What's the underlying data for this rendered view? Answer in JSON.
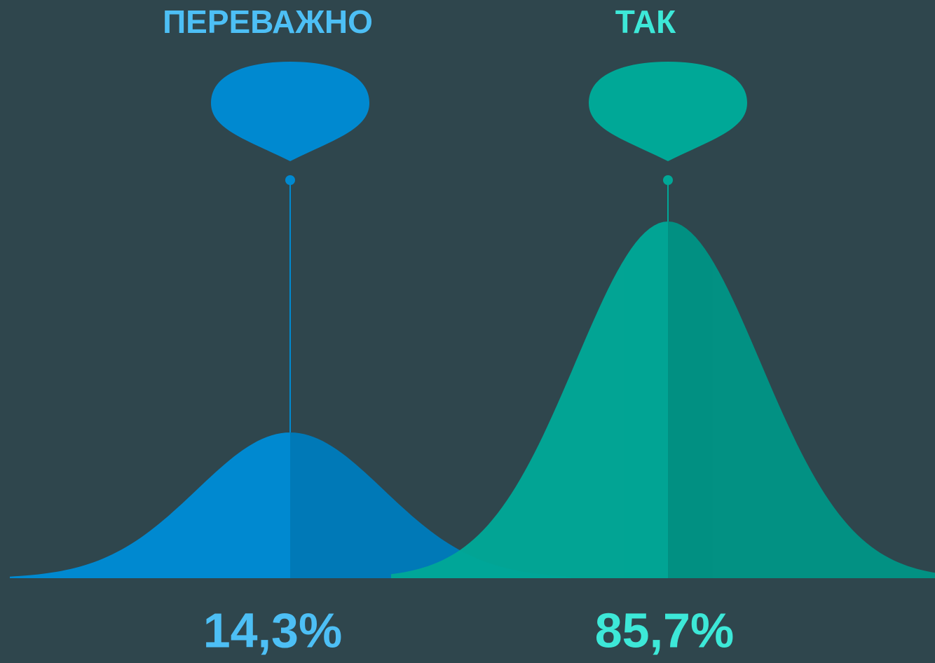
{
  "chart_data": {
    "type": "bell",
    "categories": [
      "ПЕРЕВАЖНО",
      "ТАК"
    ],
    "values": [
      14.3,
      85.7
    ],
    "value_labels": [
      "14,3%",
      "85,7%"
    ],
    "colors": [
      "#0089d0",
      "#00a897"
    ],
    "label_colors": [
      "#4dbff5",
      "#3de8d8"
    ]
  }
}
